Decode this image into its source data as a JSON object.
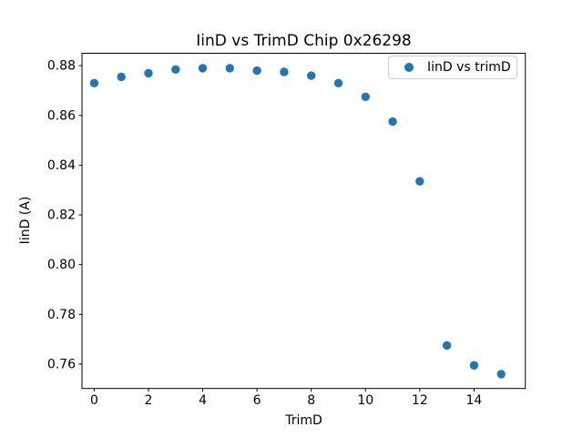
{
  "chart_data": {
    "type": "scatter",
    "title": "IinD vs TrimD Chip 0x26298",
    "xlabel": "TrimD",
    "ylabel": "IinD (A)",
    "legend": {
      "label": "IinD vs trimD",
      "position": "upper right",
      "marker": "circle"
    },
    "marker_color": "#1f77b4",
    "grid": false,
    "x": [
      0,
      1,
      2,
      3,
      4,
      5,
      6,
      7,
      8,
      9,
      10,
      11,
      12,
      13,
      14,
      15
    ],
    "y": [
      0.873,
      0.8755,
      0.877,
      0.8785,
      0.879,
      0.879,
      0.878,
      0.8775,
      0.876,
      0.873,
      0.8675,
      0.8575,
      0.8335,
      0.7675,
      0.7595,
      0.756
    ],
    "xlim": [
      -0.45,
      15.89
    ],
    "ylim": [
      0.7502,
      0.885
    ],
    "xticks": {
      "values": [
        0,
        2,
        4,
        6,
        8,
        10,
        12,
        14
      ],
      "labels": [
        "0",
        "2",
        "4",
        "6",
        "8",
        "10",
        "12",
        "14"
      ]
    },
    "yticks": {
      "values": [
        0.76,
        0.78,
        0.8,
        0.82,
        0.84,
        0.86,
        0.88
      ],
      "labels": [
        "0.76",
        "0.78",
        "0.80",
        "0.82",
        "0.84",
        "0.86",
        "0.88"
      ]
    }
  }
}
